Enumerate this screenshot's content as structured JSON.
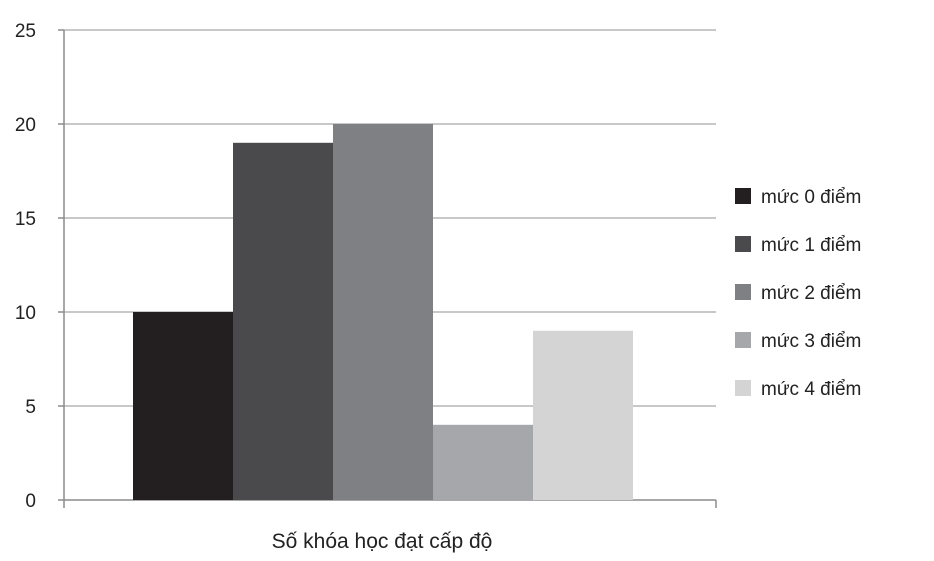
{
  "chart_data": {
    "type": "bar",
    "xlabel": "Số khóa học đạt cấp độ",
    "ylabel": "",
    "ylim": [
      0,
      25
    ],
    "yticks": [
      0,
      5,
      10,
      15,
      20,
      25
    ],
    "grid": true,
    "legend_position": "right",
    "series": [
      {
        "name": "mức 0 điểm",
        "value": 10,
        "color": "#231f20"
      },
      {
        "name": "mức 1 điểm",
        "value": 19,
        "color": "#4a4a4c"
      },
      {
        "name": "mức 2 điểm",
        "value": 20,
        "color": "#7f8083"
      },
      {
        "name": "mức 3 điểm",
        "value": 4,
        "color": "#a6a7aa"
      },
      {
        "name": "mức 4 điểm",
        "value": 9,
        "color": "#d4d4d4"
      }
    ]
  }
}
